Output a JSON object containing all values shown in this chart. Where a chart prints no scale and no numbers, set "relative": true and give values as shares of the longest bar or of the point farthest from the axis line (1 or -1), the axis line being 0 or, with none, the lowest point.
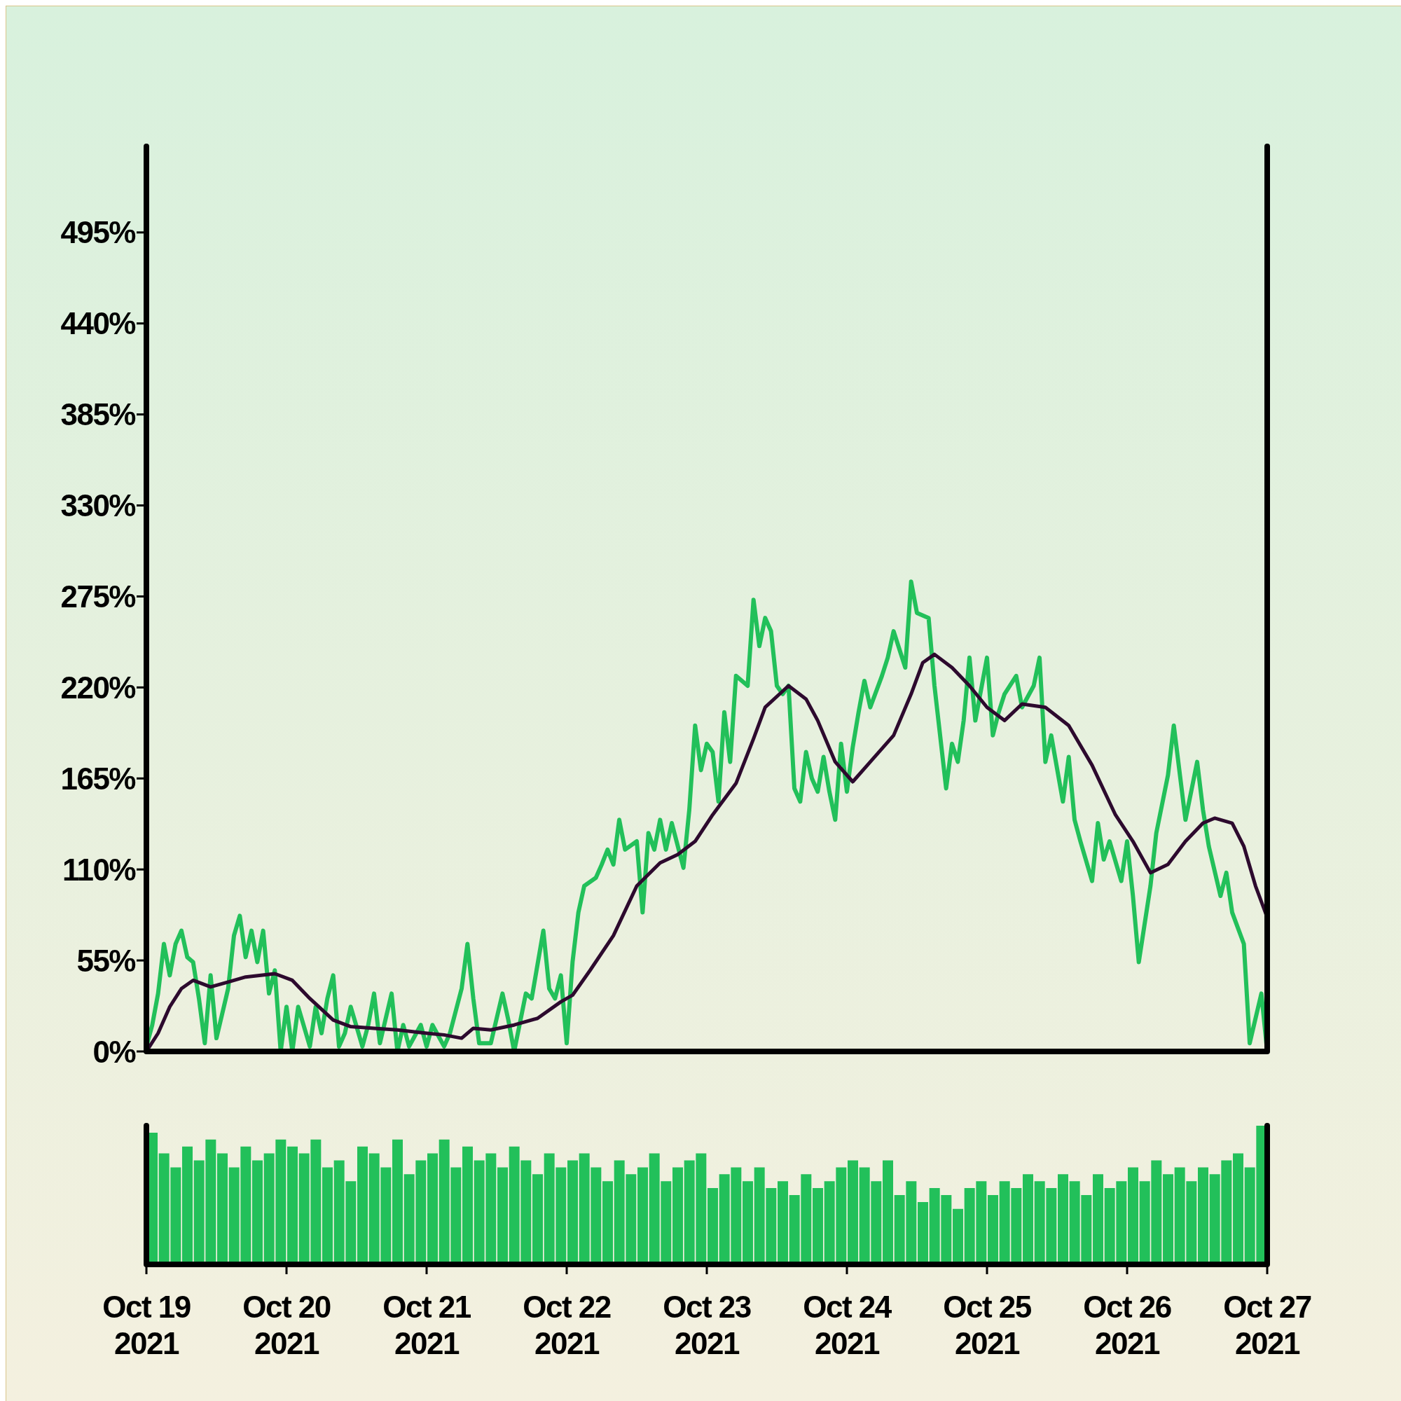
{
  "chart_data": [
    {
      "type": "line",
      "xlim": [
        "2021-10-19",
        "2021-10-27"
      ],
      "xticks": [
        {
          "value": "2021-10-19",
          "label": null
        },
        {
          "value": "2021-10-20",
          "label": null
        },
        {
          "value": "2021-10-21",
          "label": null
        },
        {
          "value": "2021-10-22",
          "label": null
        },
        {
          "value": "2021-10-23",
          "label": null
        },
        {
          "value": "2021-10-24",
          "label": null
        },
        {
          "value": "2021-10-25",
          "label": null
        },
        {
          "value": "2021-10-26",
          "label": null
        },
        {
          "value": "2021-10-27",
          "label": null
        }
      ],
      "ylim": [
        0,
        547
      ],
      "yticks": [
        {
          "value": 0,
          "label": "0%"
        },
        {
          "value": 55,
          "label": "55%"
        },
        {
          "value": 110,
          "label": "110%"
        },
        {
          "value": 165,
          "label": "165%"
        },
        {
          "value": 220,
          "label": "220%"
        },
        {
          "value": 275,
          "label": "275%"
        },
        {
          "value": 330,
          "label": "330%"
        },
        {
          "value": 385,
          "label": "385%"
        },
        {
          "value": 440,
          "label": "440%"
        },
        {
          "value": 495,
          "label": "495%"
        }
      ],
      "tick_labels": "y",
      "series": [
        {
          "color": "#22c05a",
          "x": [
            "2021-10-19T00:00",
            "2021-10-19T01:00",
            "2021-10-19T02:00",
            "2021-10-19T03:00",
            "2021-10-19T04:00",
            "2021-10-19T05:00",
            "2021-10-19T06:00",
            "2021-10-19T07:00",
            "2021-10-19T08:00",
            "2021-10-19T09:00",
            "2021-10-19T10:00",
            "2021-10-19T11:00",
            "2021-10-19T12:00",
            "2021-10-19T14:00",
            "2021-10-19T15:00",
            "2021-10-19T16:00",
            "2021-10-19T17:00",
            "2021-10-19T18:00",
            "2021-10-19T19:00",
            "2021-10-19T20:00",
            "2021-10-19T21:00",
            "2021-10-19T22:00",
            "2021-10-19T23:00",
            "2021-10-20T00:00",
            "2021-10-20T01:00",
            "2021-10-20T02:00",
            "2021-10-20T04:00",
            "2021-10-20T05:00",
            "2021-10-20T06:00",
            "2021-10-20T07:00",
            "2021-10-20T08:00",
            "2021-10-20T09:00",
            "2021-10-20T10:00",
            "2021-10-20T11:00",
            "2021-10-20T13:00",
            "2021-10-20T14:00",
            "2021-10-20T15:00",
            "2021-10-20T16:00",
            "2021-10-20T18:00",
            "2021-10-20T19:00",
            "2021-10-20T20:00",
            "2021-10-20T21:00",
            "2021-10-20T23:00",
            "2021-10-21T00:00",
            "2021-10-21T01:00",
            "2021-10-21T03:00",
            "2021-10-21T04:00",
            "2021-10-21T06:00",
            "2021-10-21T07:00",
            "2021-10-21T08:00",
            "2021-10-21T09:00",
            "2021-10-21T11:00",
            "2021-10-21T13:00",
            "2021-10-21T14:00",
            "2021-10-21T15:00",
            "2021-10-21T17:00",
            "2021-10-21T18:00",
            "2021-10-21T20:00",
            "2021-10-21T21:00",
            "2021-10-21T22:00",
            "2021-10-21T23:00",
            "2021-10-22T00:00",
            "2021-10-22T01:00",
            "2021-10-22T02:00",
            "2021-10-22T03:00",
            "2021-10-22T05:00",
            "2021-10-22T06:00",
            "2021-10-22T07:00",
            "2021-10-22T08:00",
            "2021-10-22T09:00",
            "2021-10-22T10:00",
            "2021-10-22T12:00",
            "2021-10-22T13:00",
            "2021-10-22T14:00",
            "2021-10-22T15:00",
            "2021-10-22T16:00",
            "2021-10-22T17:00",
            "2021-10-22T18:00",
            "2021-10-22T20:00",
            "2021-10-22T21:00",
            "2021-10-22T22:00",
            "2021-10-22T23:00",
            "2021-10-23T00:00",
            "2021-10-23T01:00",
            "2021-10-23T02:00",
            "2021-10-23T03:00",
            "2021-10-23T04:00",
            "2021-10-23T05:00",
            "2021-10-23T07:00",
            "2021-10-23T08:00",
            "2021-10-23T09:00",
            "2021-10-23T10:00",
            "2021-10-23T11:00",
            "2021-10-23T12:00",
            "2021-10-23T13:00",
            "2021-10-23T14:00",
            "2021-10-23T15:00",
            "2021-10-23T16:00",
            "2021-10-23T17:00",
            "2021-10-23T18:00",
            "2021-10-23T19:00",
            "2021-10-23T20:00",
            "2021-10-23T21:00",
            "2021-10-23T22:00",
            "2021-10-23T23:00",
            "2021-10-24T00:00",
            "2021-10-24T01:00",
            "2021-10-24T02:00",
            "2021-10-24T03:00",
            "2021-10-24T04:00",
            "2021-10-24T06:00",
            "2021-10-24T07:00",
            "2021-10-24T08:00",
            "2021-10-24T09:00",
            "2021-10-24T10:00",
            "2021-10-24T11:00",
            "2021-10-24T12:00",
            "2021-10-24T14:00",
            "2021-10-24T15:00",
            "2021-10-24T17:00",
            "2021-10-24T18:00",
            "2021-10-24T19:00",
            "2021-10-24T20:00",
            "2021-10-24T21:00",
            "2021-10-24T22:00",
            "2021-10-25T00:00",
            "2021-10-25T01:00",
            "2021-10-25T02:00",
            "2021-10-25T03:00",
            "2021-10-25T05:00",
            "2021-10-25T06:00",
            "2021-10-25T08:00",
            "2021-10-25T09:00",
            "2021-10-25T10:00",
            "2021-10-25T11:00",
            "2021-10-25T13:00",
            "2021-10-25T14:00",
            "2021-10-25T15:00",
            "2021-10-25T16:00",
            "2021-10-25T18:00",
            "2021-10-25T19:00",
            "2021-10-25T20:00",
            "2021-10-25T21:00",
            "2021-10-25T23:00",
            "2021-10-26T00:00",
            "2021-10-26T01:00",
            "2021-10-26T02:00",
            "2021-10-26T04:00",
            "2021-10-26T05:00",
            "2021-10-26T07:00",
            "2021-10-26T08:00",
            "2021-10-26T10:00",
            "2021-10-26T12:00",
            "2021-10-26T13:00",
            "2021-10-26T14:00",
            "2021-10-26T16:00",
            "2021-10-26T17:00",
            "2021-10-26T18:00",
            "2021-10-26T20:00",
            "2021-10-26T21:00",
            "2021-10-26T23:00",
            "2021-10-27T00:00"
          ],
          "values": [
            3,
            16,
            35,
            65,
            46,
            65,
            73,
            57,
            54,
            32,
            5,
            46,
            8,
            38,
            70,
            82,
            57,
            73,
            54,
            73,
            35,
            49,
            0,
            27,
            0,
            27,
            3,
            27,
            11,
            32,
            46,
            3,
            11,
            27,
            3,
            16,
            35,
            5,
            35,
            0,
            16,
            3,
            16,
            3,
            16,
            3,
            11,
            38,
            65,
            32,
            5,
            5,
            35,
            19,
            0,
            35,
            32,
            73,
            38,
            32,
            46,
            5,
            54,
            84,
            100,
            105,
            113,
            122,
            113,
            140,
            122,
            127,
            84,
            132,
            122,
            140,
            122,
            138,
            111,
            146,
            197,
            170,
            186,
            181,
            151,
            205,
            175,
            227,
            221,
            273,
            245,
            262,
            254,
            221,
            216,
            221,
            159,
            151,
            181,
            165,
            157,
            178,
            157,
            140,
            186,
            157,
            184,
            205,
            224,
            208,
            227,
            238,
            254,
            243,
            232,
            284,
            265,
            262,
            221,
            159,
            186,
            175,
            200,
            238,
            200,
            238,
            191,
            205,
            216,
            227,
            208,
            221,
            238,
            175,
            191,
            151,
            178,
            140,
            127,
            103,
            138,
            116,
            127,
            103,
            127,
            94,
            54,
            100,
            132,
            167,
            197,
            140,
            175,
            146,
            124,
            94,
            108,
            84,
            65,
            5,
            35,
            0
          ]
        },
        {
          "color": "#2d0a2e",
          "x": [
            "2021-10-19T00:00",
            "2021-10-19T02:00",
            "2021-10-19T04:00",
            "2021-10-19T06:00",
            "2021-10-19T08:00",
            "2021-10-19T11:00",
            "2021-10-19T14:00",
            "2021-10-19T17:00",
            "2021-10-19T22:00",
            "2021-10-20T01:00",
            "2021-10-20T04:00",
            "2021-10-20T08:00",
            "2021-10-20T11:00",
            "2021-10-20T15:00",
            "2021-10-20T19:00",
            "2021-10-21T00:00",
            "2021-10-21T03:00",
            "2021-10-21T06:00",
            "2021-10-21T08:00",
            "2021-10-21T11:00",
            "2021-10-21T15:00",
            "2021-10-21T19:00",
            "2021-10-21T23:00",
            "2021-10-22T01:00",
            "2021-10-22T04:00",
            "2021-10-22T08:00",
            "2021-10-22T12:00",
            "2021-10-22T16:00",
            "2021-10-22T19:00",
            "2021-10-22T22:00",
            "2021-10-23T01:00",
            "2021-10-23T05:00",
            "2021-10-23T08:00",
            "2021-10-23T10:00",
            "2021-10-23T14:00",
            "2021-10-23T17:00",
            "2021-10-23T19:00",
            "2021-10-23T22:00",
            "2021-10-24T01:00",
            "2021-10-24T04:00",
            "2021-10-24T08:00",
            "2021-10-24T11:00",
            "2021-10-24T13:00",
            "2021-10-24T15:00",
            "2021-10-24T18:00",
            "2021-10-24T21:00",
            "2021-10-25T00:00",
            "2021-10-25T03:00",
            "2021-10-25T06:00",
            "2021-10-25T10:00",
            "2021-10-25T14:00",
            "2021-10-25T18:00",
            "2021-10-25T22:00",
            "2021-10-26T01:00",
            "2021-10-26T04:00",
            "2021-10-26T07:00",
            "2021-10-26T10:00",
            "2021-10-26T13:00",
            "2021-10-26T15:00",
            "2021-10-26T18:00",
            "2021-10-26T20:00",
            "2021-10-26T22:00",
            "2021-10-27T00:00"
          ],
          "values": [
            0,
            11,
            27,
            38,
            43,
            39,
            42,
            45,
            47,
            43,
            32,
            19,
            15,
            14,
            13,
            11,
            10,
            8,
            14,
            13,
            16,
            20,
            30,
            34,
            49,
            70,
            100,
            114,
            119,
            127,
            143,
            162,
            189,
            208,
            221,
            213,
            200,
            175,
            163,
            175,
            191,
            216,
            235,
            240,
            232,
            221,
            208,
            200,
            210,
            208,
            197,
            173,
            143,
            127,
            108,
            113,
            127,
            138,
            141,
            138,
            124,
            100,
            81
          ]
        }
      ]
    },
    {
      "type": "bar",
      "relative": true,
      "color": "#22c05a",
      "tick_labels": "x",
      "xlim": [
        "2021-10-19",
        "2021-10-27"
      ],
      "xticks": [
        {
          "value": "2021-10-19",
          "label": "Oct 19 2021"
        },
        {
          "value": "2021-10-20",
          "label": "Oct 20 2021"
        },
        {
          "value": "2021-10-21",
          "label": "Oct 21 2021"
        },
        {
          "value": "2021-10-22",
          "label": "Oct 22 2021"
        },
        {
          "value": "2021-10-23",
          "label": "Oct 23 2021"
        },
        {
          "value": "2021-10-24",
          "label": "Oct 24 2021"
        },
        {
          "value": "2021-10-25",
          "label": "Oct 25 2021"
        },
        {
          "value": "2021-10-26",
          "label": "Oct 26 2021"
        },
        {
          "value": "2021-10-27",
          "label": "Oct 27 2021"
        }
      ],
      "x": [
        "2021-10-19T01:00",
        "2021-10-19T03:00",
        "2021-10-19T05:00",
        "2021-10-19T07:00",
        "2021-10-19T09:00",
        "2021-10-19T11:00",
        "2021-10-19T13:00",
        "2021-10-19T15:00",
        "2021-10-19T17:00",
        "2021-10-19T19:00",
        "2021-10-19T21:00",
        "2021-10-19T23:00",
        "2021-10-20T01:00",
        "2021-10-20T03:00",
        "2021-10-20T05:00",
        "2021-10-20T07:00",
        "2021-10-20T09:00",
        "2021-10-20T11:00",
        "2021-10-20T13:00",
        "2021-10-20T15:00",
        "2021-10-20T17:00",
        "2021-10-20T19:00",
        "2021-10-20T21:00",
        "2021-10-20T23:00",
        "2021-10-21T01:00",
        "2021-10-21T03:00",
        "2021-10-21T05:00",
        "2021-10-21T07:00",
        "2021-10-21T09:00",
        "2021-10-21T11:00",
        "2021-10-21T13:00",
        "2021-10-21T15:00",
        "2021-10-21T17:00",
        "2021-10-21T19:00",
        "2021-10-21T21:00",
        "2021-10-21T23:00",
        "2021-10-22T01:00",
        "2021-10-22T03:00",
        "2021-10-22T05:00",
        "2021-10-22T07:00",
        "2021-10-22T09:00",
        "2021-10-22T11:00",
        "2021-10-22T13:00",
        "2021-10-22T15:00",
        "2021-10-22T17:00",
        "2021-10-22T19:00",
        "2021-10-22T21:00",
        "2021-10-22T23:00",
        "2021-10-23T01:00",
        "2021-10-23T03:00",
        "2021-10-23T05:00",
        "2021-10-23T07:00",
        "2021-10-23T09:00",
        "2021-10-23T11:00",
        "2021-10-23T13:00",
        "2021-10-23T15:00",
        "2021-10-23T17:00",
        "2021-10-23T19:00",
        "2021-10-23T21:00",
        "2021-10-23T23:00",
        "2021-10-24T01:00",
        "2021-10-24T03:00",
        "2021-10-24T05:00",
        "2021-10-24T07:00",
        "2021-10-24T09:00",
        "2021-10-24T11:00",
        "2021-10-24T13:00",
        "2021-10-24T15:00",
        "2021-10-24T17:00",
        "2021-10-24T19:00",
        "2021-10-24T21:00",
        "2021-10-24T23:00",
        "2021-10-25T01:00",
        "2021-10-25T03:00",
        "2021-10-25T05:00",
        "2021-10-25T07:00",
        "2021-10-25T09:00",
        "2021-10-25T11:00",
        "2021-10-25T13:00",
        "2021-10-25T15:00",
        "2021-10-25T17:00",
        "2021-10-25T19:00",
        "2021-10-25T21:00",
        "2021-10-25T23:00",
        "2021-10-26T01:00",
        "2021-10-26T03:00",
        "2021-10-26T05:00",
        "2021-10-26T07:00",
        "2021-10-26T09:00",
        "2021-10-26T11:00",
        "2021-10-26T13:00",
        "2021-10-26T15:00",
        "2021-10-26T17:00",
        "2021-10-26T19:00",
        "2021-10-26T21:00",
        "2021-10-26T23:00"
      ],
      "values": [
        0.95,
        0.8,
        0.7,
        0.85,
        0.75,
        0.9,
        0.8,
        0.7,
        0.85,
        0.75,
        0.8,
        0.9,
        0.85,
        0.8,
        0.9,
        0.7,
        0.75,
        0.6,
        0.85,
        0.8,
        0.7,
        0.9,
        0.65,
        0.75,
        0.8,
        0.9,
        0.7,
        0.85,
        0.75,
        0.8,
        0.7,
        0.85,
        0.75,
        0.65,
        0.8,
        0.7,
        0.75,
        0.8,
        0.7,
        0.6,
        0.75,
        0.65,
        0.7,
        0.8,
        0.6,
        0.7,
        0.75,
        0.8,
        0.55,
        0.65,
        0.7,
        0.6,
        0.7,
        0.55,
        0.6,
        0.5,
        0.65,
        0.55,
        0.6,
        0.7,
        0.75,
        0.7,
        0.6,
        0.75,
        0.5,
        0.6,
        0.45,
        0.55,
        0.5,
        0.4,
        0.55,
        0.6,
        0.5,
        0.6,
        0.55,
        0.65,
        0.6,
        0.55,
        0.65,
        0.6,
        0.5,
        0.65,
        0.55,
        0.6,
        0.7,
        0.6,
        0.75,
        0.65,
        0.7,
        0.6,
        0.7,
        0.65,
        0.75,
        0.8,
        0.7,
        1.0
      ]
    }
  ]
}
